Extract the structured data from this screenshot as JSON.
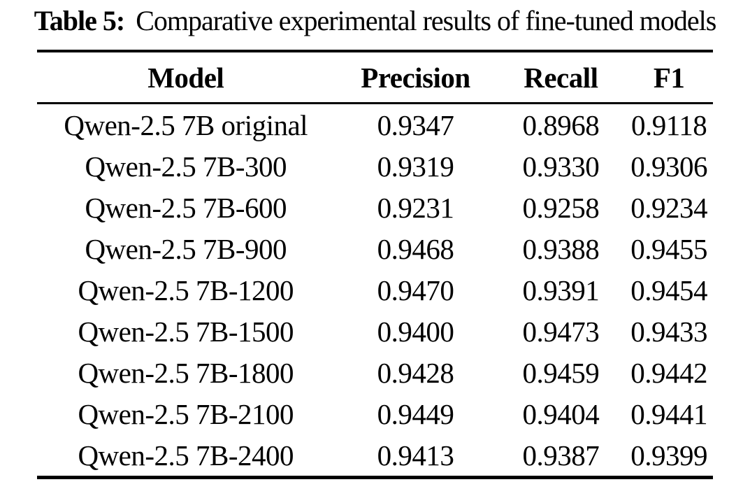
{
  "colors": {
    "background": "#ffffff",
    "text": "#000000",
    "rule": "#000000"
  },
  "caption": {
    "label": "Table 5:",
    "text": "Comparative experimental results of fine-tuned models"
  },
  "table": {
    "columns": [
      "Model",
      "Precision",
      "Recall",
      "F1"
    ],
    "rows": [
      [
        "Qwen-2.5 7B original",
        "0.9347",
        "0.8968",
        "0.9118"
      ],
      [
        "Qwen-2.5 7B-300",
        "0.9319",
        "0.9330",
        "0.9306"
      ],
      [
        "Qwen-2.5 7B-600",
        "0.9231",
        "0.9258",
        "0.9234"
      ],
      [
        "Qwen-2.5 7B-900",
        "0.9468",
        "0.9388",
        "0.9455"
      ],
      [
        "Qwen-2.5 7B-1200",
        "0.9470",
        "0.9391",
        "0.9454"
      ],
      [
        "Qwen-2.5 7B-1500",
        "0.9400",
        "0.9473",
        "0.9433"
      ],
      [
        "Qwen-2.5 7B-1800",
        "0.9428",
        "0.9459",
        "0.9442"
      ],
      [
        "Qwen-2.5 7B-2100",
        "0.9449",
        "0.9404",
        "0.9441"
      ],
      [
        "Qwen-2.5 7B-2400",
        "0.9413",
        "0.9387",
        "0.9399"
      ]
    ]
  }
}
